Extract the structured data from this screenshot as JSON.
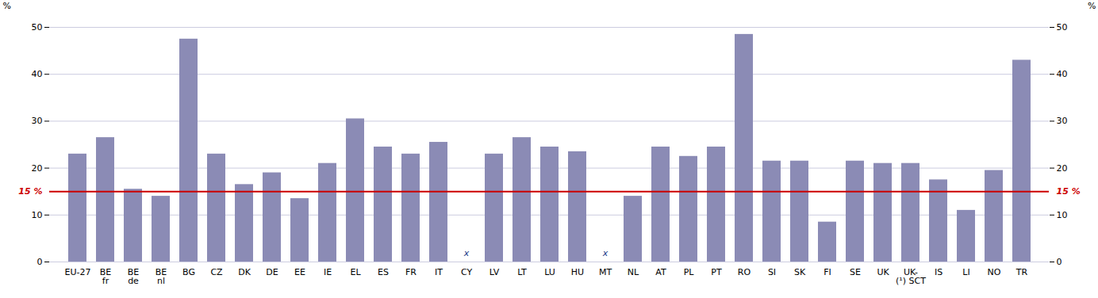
{
  "chart_data": {
    "type": "bar",
    "categories": [
      "EU-27",
      "BE\nfr",
      "BE\nde",
      "BE\nnl",
      "BG",
      "CZ",
      "DK",
      "DE",
      "EE",
      "IE",
      "EL",
      "ES",
      "FR",
      "IT",
      "CY",
      "LV",
      "LT",
      "LU",
      "HU",
      "MT",
      "NL",
      "AT",
      "PL",
      "PT",
      "RO",
      "SI",
      "SK",
      "FI",
      "SE",
      "UK",
      "UK-\n(¹) SCT",
      "IS",
      "LI",
      "NO",
      "TR"
    ],
    "values": [
      23,
      26.5,
      15.5,
      14,
      47.5,
      23,
      16.5,
      19,
      13.5,
      21,
      30.5,
      24.5,
      23,
      25.5,
      null,
      23,
      26.5,
      24.5,
      23.5,
      null,
      14,
      24.5,
      22.5,
      24.5,
      48.5,
      21.5,
      21.5,
      8.5,
      21.5,
      21,
      21,
      17.5,
      11,
      19.5,
      43
    ],
    "color": "#8b8bb5",
    "ylabel": "%",
    "ylim": [
      0,
      50
    ],
    "yticks": [
      0,
      10,
      20,
      30,
      40,
      50
    ],
    "y2label": "%",
    "y2lim": [
      0,
      50
    ],
    "y2ticks": [
      0,
      10,
      20,
      30,
      40,
      50
    ],
    "grid": true,
    "reference_line": {
      "value": 15,
      "label": "15 %",
      "color": "#cc0000"
    },
    "annotations": [
      {
        "text": "x",
        "category": "CY"
      },
      {
        "text": "x",
        "category": "MT"
      }
    ]
  }
}
